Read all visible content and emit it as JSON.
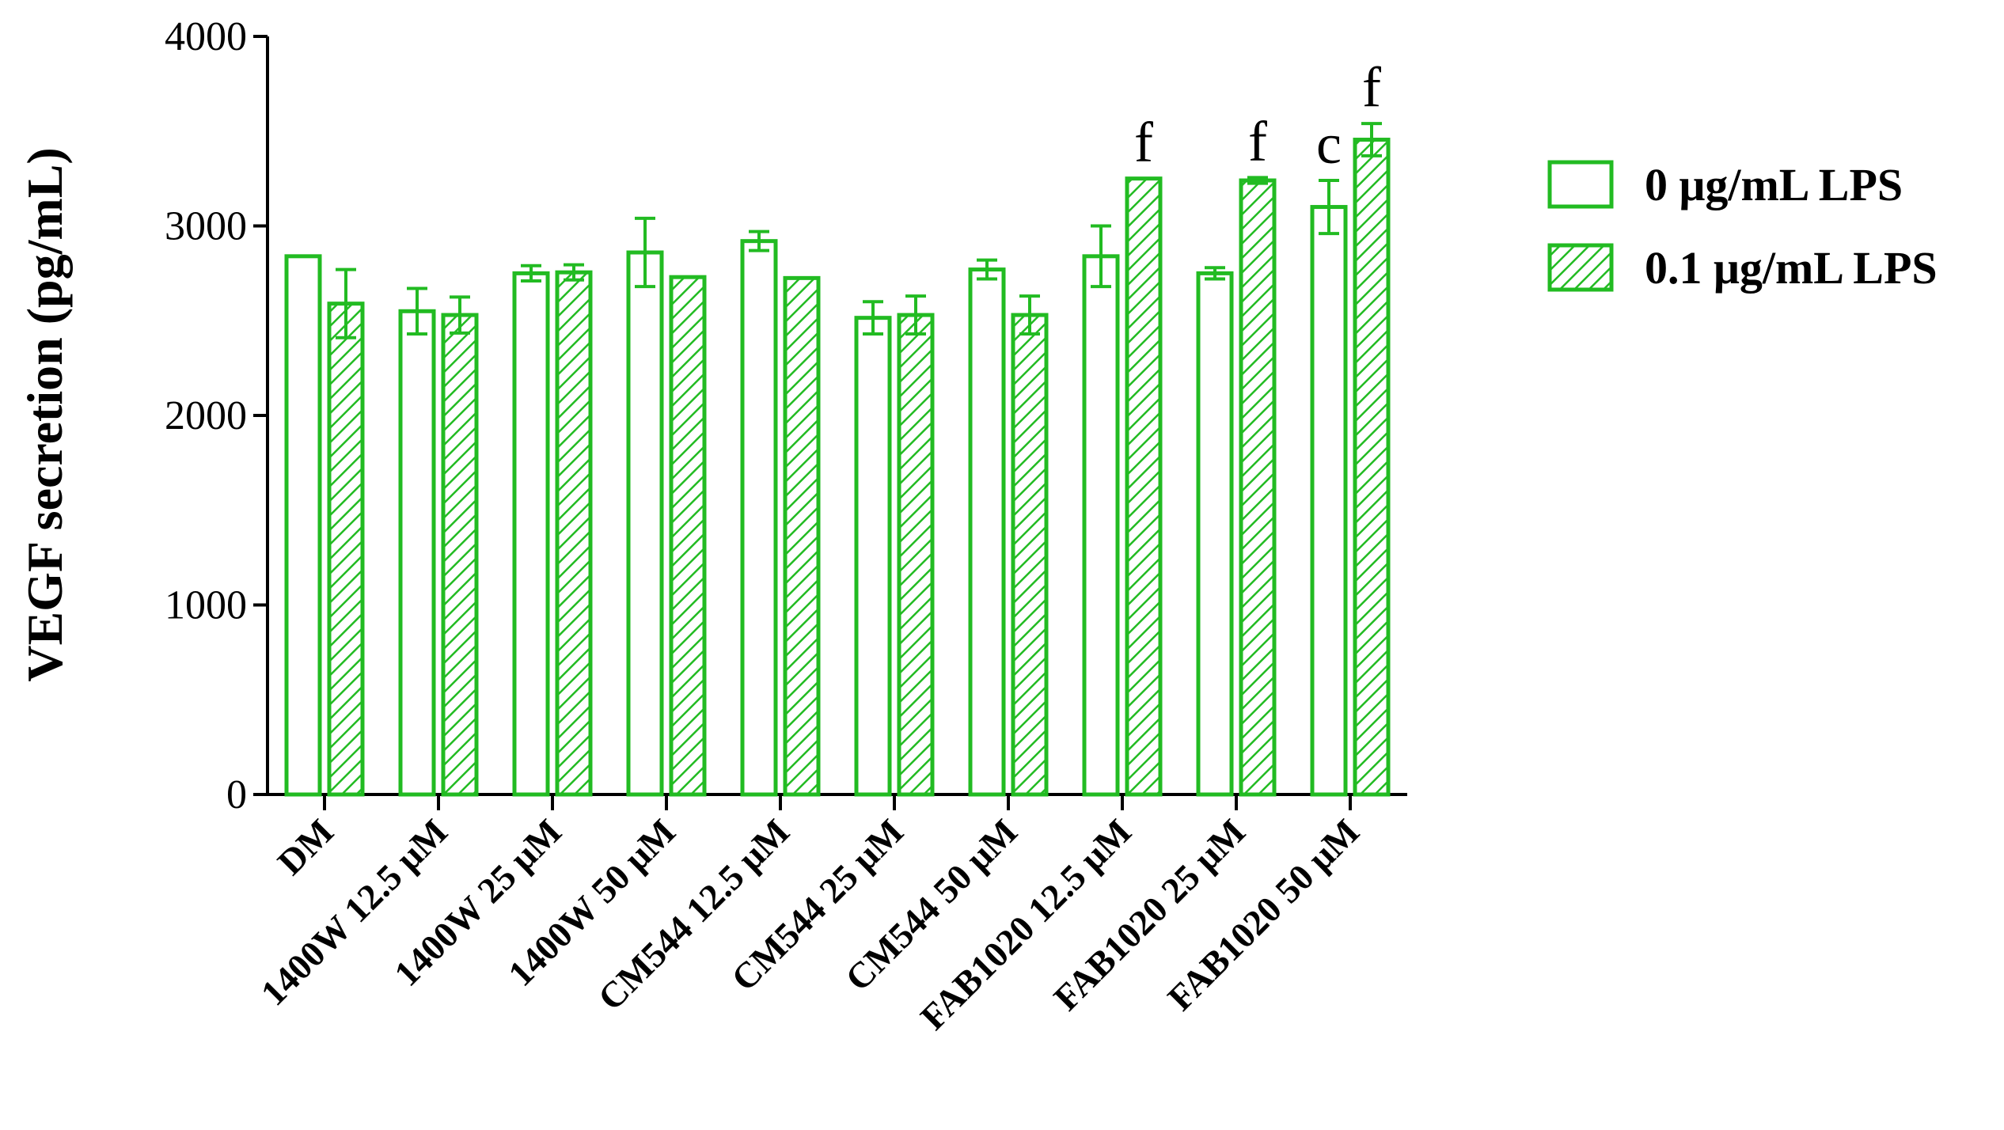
{
  "chart_data": {
    "type": "bar",
    "ylabel": "VEGF secretion (pg/mL)",
    "xlabel": "",
    "ylim": [
      0,
      4000
    ],
    "yticks": [
      0,
      1000,
      2000,
      3000,
      4000
    ],
    "ytick_labels": [
      "0",
      "1000",
      "2000",
      "3000",
      "4000"
    ],
    "categories": [
      "DM",
      "1400W 12.5 μM",
      "1400W 25 μM",
      "1400W 50 μM",
      "CM544 12.5 μM",
      "CM544 25 μM",
      "CM544 50 μM",
      "FAB1020 12.5 μM",
      "FAB1020 25 μM",
      "FAB1020 50 μM"
    ],
    "series": [
      {
        "name": "0 μg/mL LPS",
        "fill": "open",
        "values": [
          2840,
          2550,
          2750,
          2860,
          2920,
          2515,
          2770,
          2840,
          2750,
          3100
        ],
        "errors": [
          0,
          120,
          40,
          180,
          50,
          85,
          50,
          160,
          30,
          140
        ],
        "annotations": [
          "",
          "",
          "",
          "",
          "",
          "",
          "",
          "",
          "",
          "c"
        ]
      },
      {
        "name": "0.1 μg/mL LPS",
        "fill": "hatched",
        "values": [
          2590,
          2530,
          2755,
          2730,
          2725,
          2530,
          2530,
          3250,
          3240,
          3455
        ],
        "errors": [
          180,
          95,
          40,
          0,
          0,
          100,
          100,
          0,
          15,
          85
        ],
        "annotations": [
          "",
          "",
          "",
          "",
          "",
          "",
          "",
          "f",
          "f",
          "f"
        ]
      }
    ],
    "legend_position": "right",
    "grid": false,
    "colors": {
      "bar_stroke": "#22bb22",
      "background": "#ffffff",
      "axis": "#000000"
    }
  }
}
